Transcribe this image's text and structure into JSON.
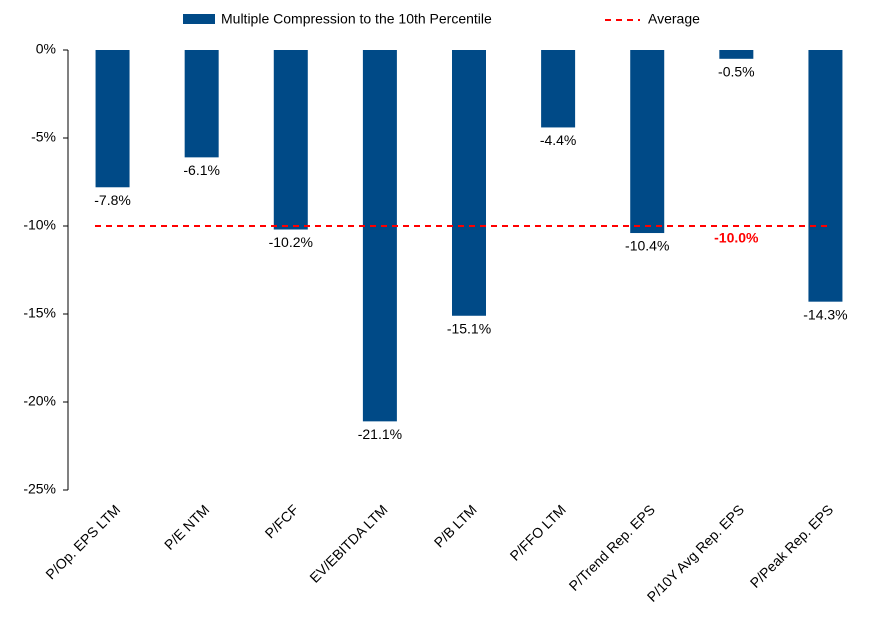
{
  "chart_data": {
    "type": "bar",
    "categories": [
      "P/Op. EPS LTM",
      "P/E NTM",
      "P/FCF",
      "EV/EBITDA LTM",
      "P/B LTM",
      "P/FFO LTM",
      "P/Trend Rep. EPS",
      "P/10Y Avg Rep. EPS",
      "P/Peak Rep. EPS"
    ],
    "series": [
      {
        "name": "Multiple Compression to the 10th Percentile",
        "color": "#004a87",
        "values": [
          -7.8,
          -6.1,
          -10.2,
          -21.1,
          -15.1,
          -4.4,
          -10.4,
          -0.5,
          -14.3
        ],
        "value_labels": [
          "-7.8%",
          "-6.1%",
          "-10.2%",
          "-21.1%",
          "-15.1%",
          "-4.4%",
          "-10.4%",
          "-0.5%",
          "-14.3%"
        ]
      }
    ],
    "average": {
      "name": "Average",
      "value": -10.0,
      "label": "-10.0%",
      "color": "#ff0000"
    },
    "ylim": [
      -25,
      0
    ],
    "yticks": [
      {
        "value": 0,
        "label": "0%"
      },
      {
        "value": -5,
        "label": "-5%"
      },
      {
        "value": -10,
        "label": "-10%"
      },
      {
        "value": -15,
        "label": "-15%"
      },
      {
        "value": -20,
        "label": "-20%"
      },
      {
        "value": -25,
        "label": "-25%"
      }
    ],
    "legend": "top"
  }
}
